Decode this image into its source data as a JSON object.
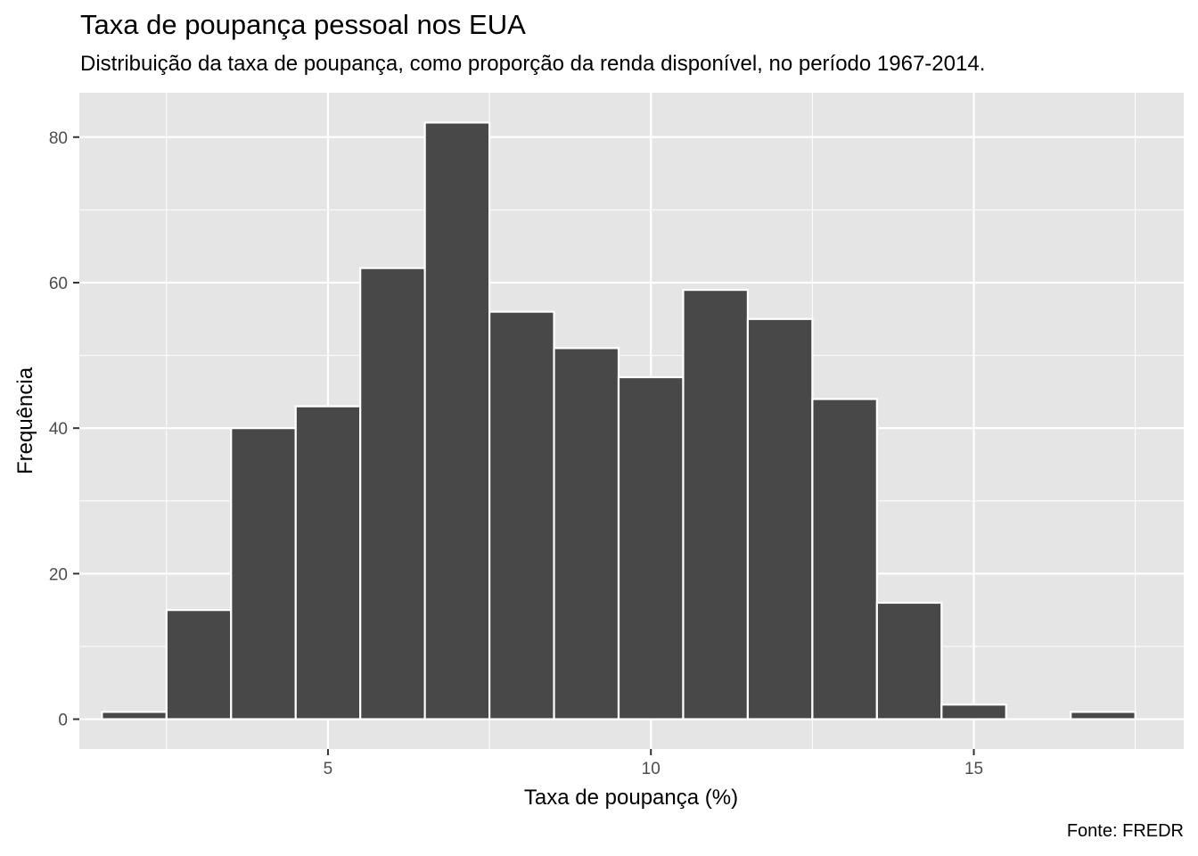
{
  "chart_data": {
    "type": "bar",
    "title": "Taxa de poupança pessoal nos EUA",
    "subtitle": "Distribuição da taxa de poupança, como proporção da renda disponível, no período 1967-2014.",
    "caption": "Fonte: FREDR",
    "xlabel": "Taxa de poupança (%)",
    "ylabel": "Frequência",
    "bin_width": 1,
    "bin_centers": [
      2,
      3,
      4,
      5,
      6,
      7,
      8,
      9,
      10,
      11,
      12,
      13,
      14,
      15,
      16,
      17
    ],
    "values": [
      1,
      15,
      40,
      43,
      62,
      82,
      56,
      51,
      47,
      59,
      55,
      44,
      16,
      2,
      0,
      1
    ],
    "xlim": [
      1.15,
      18.25
    ],
    "ylim": [
      -4.1,
      86.1
    ],
    "x_ticks": [
      5,
      10,
      15
    ],
    "x_tick_labels": [
      "5",
      "10",
      "15"
    ],
    "y_ticks": [
      0,
      20,
      40,
      60,
      80
    ],
    "y_tick_labels": [
      "0",
      "20",
      "40",
      "60",
      "80"
    ],
    "grid": true,
    "colors": {
      "bar_fill": "#484848",
      "bar_outline": "#ffffff",
      "panel": "#e5e5e5",
      "grid": "#ffffff"
    }
  }
}
